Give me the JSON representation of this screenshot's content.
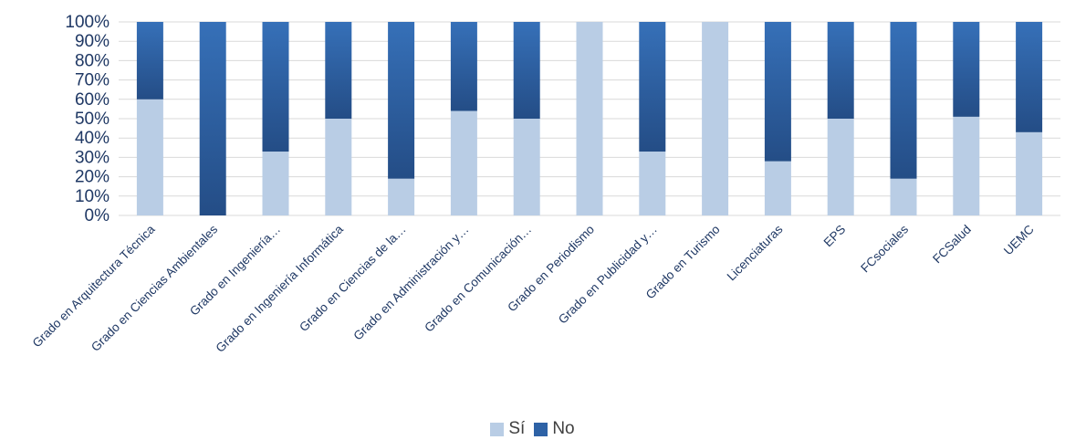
{
  "chart_data": {
    "type": "bar",
    "stacked": true,
    "percent_stacked": true,
    "categories": [
      "Grado en Arquitectura Técnica",
      "Grado en Ciencias Ambientales",
      "Grado en Ingeniería…",
      "Grado en Ingeniería Informática",
      "Grado en Ciencias de la…",
      "Grado en Administración y…",
      "Grado en Comunicación…",
      "Grado en Periodismo",
      "Grado en Publicidad y…",
      "Grado en Turismo",
      "Licenciaturas",
      "EPS",
      "FCsociales",
      "FCSalud",
      "UEMC"
    ],
    "series": [
      {
        "name": "Sí",
        "color": "#b9cde5",
        "values": [
          60,
          0,
          33,
          50,
          19,
          54,
          50,
          100,
          33,
          100,
          28,
          50,
          19,
          51,
          43
        ]
      },
      {
        "name": "No",
        "color": "#2e62a6",
        "values": [
          40,
          100,
          67,
          50,
          81,
          46,
          50,
          0,
          67,
          0,
          72,
          50,
          81,
          49,
          57
        ]
      }
    ],
    "y_ticks": [
      "0%",
      "10%",
      "20%",
      "30%",
      "40%",
      "50%",
      "60%",
      "70%",
      "80%",
      "90%",
      "100%"
    ],
    "ylim": [
      0,
      100
    ],
    "grid": true,
    "legend_position": "bottom",
    "title": "",
    "xlabel": "",
    "ylabel": ""
  }
}
